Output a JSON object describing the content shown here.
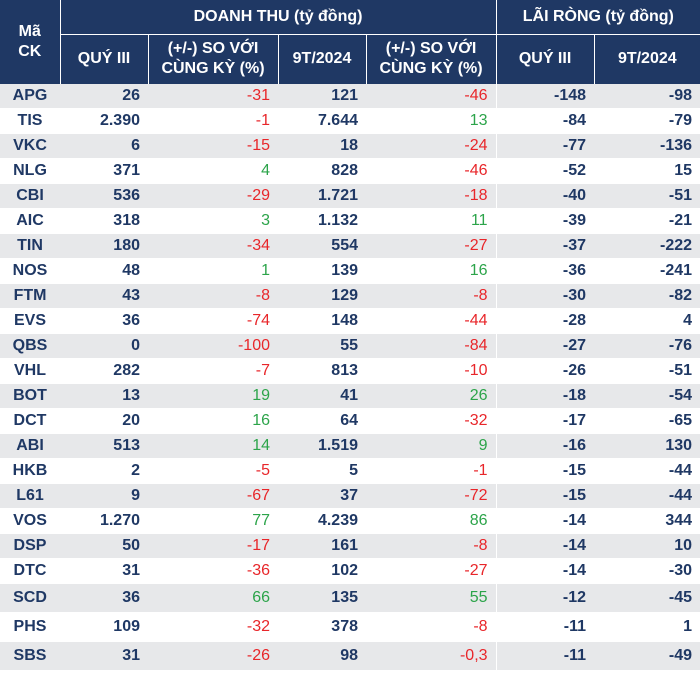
{
  "chart_data": {
    "type": "table",
    "header": {
      "code_label": "Mã CK",
      "group_revenue": "DOANH THU (tỷ đồng)",
      "group_profit": "LÃI RÒNG (tỷ đồng)",
      "col_q3": "QUÝ III",
      "col_yoy": "(+/-) SO VỚI CÙNG KỲ (%)",
      "col_9t": "9T/2024"
    },
    "columns": [
      "Mã CK",
      "Doanh thu Quý III",
      "(+/-) so với cùng kỳ (%)",
      "Doanh thu 9T/2024",
      "(+/-) so với cùng kỳ (%)",
      "Lãi ròng Quý III",
      "Lãi ròng 9T/2024"
    ],
    "rows": [
      {
        "code": "APG",
        "rev_q3": "26",
        "rev_q3_chg": "-31",
        "rev_9t": "121",
        "rev_9t_chg": "-46",
        "np_q3": "-148",
        "np_9t": "-98"
      },
      {
        "code": "TIS",
        "rev_q3": "2.390",
        "rev_q3_chg": "-1",
        "rev_9t": "7.644",
        "rev_9t_chg": "13",
        "np_q3": "-84",
        "np_9t": "-79"
      },
      {
        "code": "VKC",
        "rev_q3": "6",
        "rev_q3_chg": "-15",
        "rev_9t": "18",
        "rev_9t_chg": "-24",
        "np_q3": "-77",
        "np_9t": "-136"
      },
      {
        "code": "NLG",
        "rev_q3": "371",
        "rev_q3_chg": "4",
        "rev_9t": "828",
        "rev_9t_chg": "-46",
        "np_q3": "-52",
        "np_9t": "15"
      },
      {
        "code": "CBI",
        "rev_q3": "536",
        "rev_q3_chg": "-29",
        "rev_9t": "1.721",
        "rev_9t_chg": "-18",
        "np_q3": "-40",
        "np_9t": "-51"
      },
      {
        "code": "AIC",
        "rev_q3": "318",
        "rev_q3_chg": "3",
        "rev_9t": "1.132",
        "rev_9t_chg": "11",
        "np_q3": "-39",
        "np_9t": "-21"
      },
      {
        "code": "TIN",
        "rev_q3": "180",
        "rev_q3_chg": "-34",
        "rev_9t": "554",
        "rev_9t_chg": "-27",
        "np_q3": "-37",
        "np_9t": "-222"
      },
      {
        "code": "NOS",
        "rev_q3": "48",
        "rev_q3_chg": "1",
        "rev_9t": "139",
        "rev_9t_chg": "16",
        "np_q3": "-36",
        "np_9t": "-241"
      },
      {
        "code": "FTM",
        "rev_q3": "43",
        "rev_q3_chg": "-8",
        "rev_9t": "129",
        "rev_9t_chg": "-8",
        "np_q3": "-30",
        "np_9t": "-82"
      },
      {
        "code": "EVS",
        "rev_q3": "36",
        "rev_q3_chg": "-74",
        "rev_9t": "148",
        "rev_9t_chg": "-44",
        "np_q3": "-28",
        "np_9t": "4"
      },
      {
        "code": "QBS",
        "rev_q3": "0",
        "rev_q3_chg": "-100",
        "rev_9t": "55",
        "rev_9t_chg": "-84",
        "np_q3": "-27",
        "np_9t": "-76"
      },
      {
        "code": "VHL",
        "rev_q3": "282",
        "rev_q3_chg": "-7",
        "rev_9t": "813",
        "rev_9t_chg": "-10",
        "np_q3": "-26",
        "np_9t": "-51"
      },
      {
        "code": "BOT",
        "rev_q3": "13",
        "rev_q3_chg": "19",
        "rev_9t": "41",
        "rev_9t_chg": "26",
        "np_q3": "-18",
        "np_9t": "-54"
      },
      {
        "code": "DCT",
        "rev_q3": "20",
        "rev_q3_chg": "16",
        "rev_9t": "64",
        "rev_9t_chg": "-32",
        "np_q3": "-17",
        "np_9t": "-65"
      },
      {
        "code": "ABI",
        "rev_q3": "513",
        "rev_q3_chg": "14",
        "rev_9t": "1.519",
        "rev_9t_chg": "9",
        "np_q3": "-16",
        "np_9t": "130"
      },
      {
        "code": "HKB",
        "rev_q3": "2",
        "rev_q3_chg": "-5",
        "rev_9t": "5",
        "rev_9t_chg": "-1",
        "np_q3": "-15",
        "np_9t": "-44"
      },
      {
        "code": "L61",
        "rev_q3": "9",
        "rev_q3_chg": "-67",
        "rev_9t": "37",
        "rev_9t_chg": "-72",
        "np_q3": "-15",
        "np_9t": "-44"
      },
      {
        "code": "VOS",
        "rev_q3": "1.270",
        "rev_q3_chg": "77",
        "rev_9t": "4.239",
        "rev_9t_chg": "86",
        "np_q3": "-14",
        "np_9t": "344"
      },
      {
        "code": "DSP",
        "rev_q3": "50",
        "rev_q3_chg": "-17",
        "rev_9t": "161",
        "rev_9t_chg": "-8",
        "np_q3": "-14",
        "np_9t": "10"
      },
      {
        "code": "DTC",
        "rev_q3": "31",
        "rev_q3_chg": "-36",
        "rev_9t": "102",
        "rev_9t_chg": "-27",
        "np_q3": "-14",
        "np_9t": "-30"
      },
      {
        "code": "SCD",
        "rev_q3": "36",
        "rev_q3_chg": "66",
        "rev_9t": "135",
        "rev_9t_chg": "55",
        "np_q3": "-12",
        "np_9t": "-45"
      },
      {
        "code": "PHS",
        "rev_q3": "109",
        "rev_q3_chg": "-32",
        "rev_9t": "378",
        "rev_9t_chg": "-8",
        "np_q3": "-11",
        "np_9t": "1"
      },
      {
        "code": "SBS",
        "rev_q3": "31",
        "rev_q3_chg": "-26",
        "rev_9t": "98",
        "rev_9t_chg": "-0,3",
        "np_q3": "-11",
        "np_9t": "-49"
      }
    ],
    "colors": {
      "header_bg": "#1f3864",
      "header_text": "#ffffff",
      "text": "#1f3864",
      "negative": "#e8262a",
      "positive": "#2ca44a",
      "stripe": "#e7e8ea"
    }
  }
}
